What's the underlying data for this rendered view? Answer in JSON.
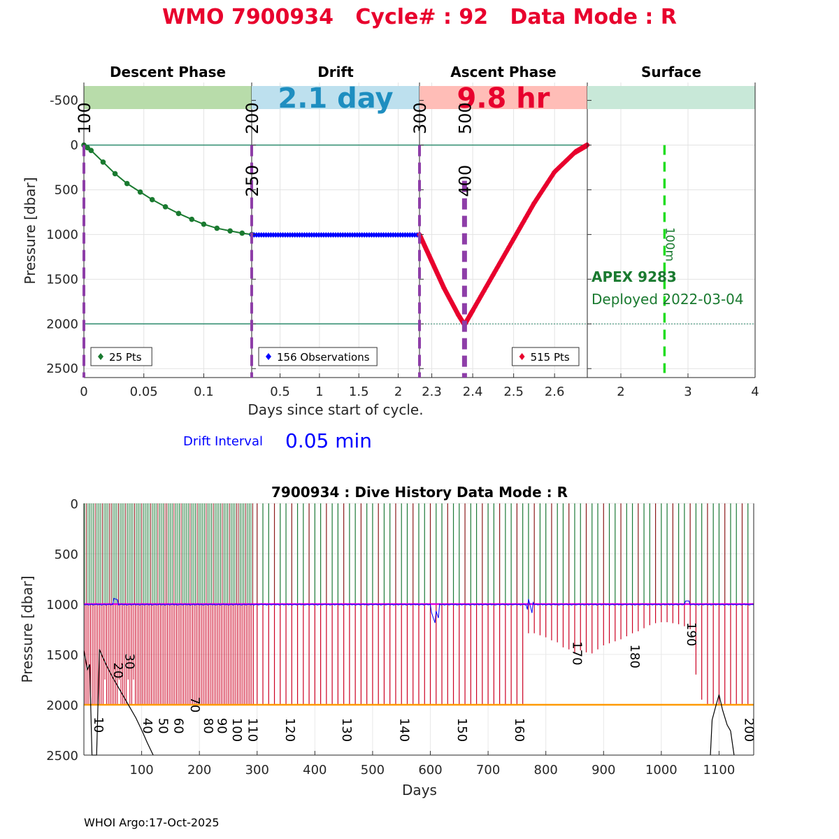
{
  "header": {
    "title": "WMO 7900934   Cycle# : 92   Data Mode : R"
  },
  "colors": {
    "title": "#e8002d",
    "descent": "#1a7a30",
    "drift": "#0000ff",
    "ascent": "#e8002d",
    "phase_marker": "#8e3ea8",
    "reference_line": "#2e8b6e",
    "surface_marker": "#22dd22",
    "float_info": "#1a7a30",
    "drift_interval": "#0000ff",
    "descent_band": "#b8dcaa",
    "drift_band": "#bde0ee",
    "ascent_band": "#ffbdb7",
    "surface_band": "#c8e8d8",
    "drift_value_band": "#1e8ec0",
    "history_green": "#1e7a38",
    "history_red": "#cc0022",
    "history_darkred": "#8b1a1a",
    "history_magenta": "#e000e0",
    "history_orange": "#ff9a00"
  },
  "chart_data": [
    {
      "type": "line",
      "title": "",
      "xlabel": "Days since start of cycle.",
      "ylabel": "Pressure [dbar]",
      "ylim": [
        2600,
        -700
      ],
      "yticks": [
        "-500",
        "0",
        "500",
        "1000",
        "1500",
        "2000",
        "2500"
      ],
      "ytick_values": [
        -500,
        0,
        500,
        1000,
        1500,
        2000,
        2500
      ],
      "panels": [
        {
          "name": "Descent Phase",
          "band_label": "",
          "xlim": [
            0,
            0.14
          ],
          "xticks": [
            "0",
            "0.05",
            "0.1"
          ],
          "xtick_values": [
            0,
            0.05,
            0.1
          ],
          "legend": "25 Pts",
          "legend_position": "bottom-left",
          "series": [
            {
              "name": "Descent",
              "points": [
                [
                  0,
                  0
                ],
                [
                  0.003,
                  30
                ],
                [
                  0.006,
                  60
                ],
                [
                  0.016,
                  190
                ],
                [
                  0.026,
                  320
                ],
                [
                  0.036,
                  430
                ],
                [
                  0.047,
                  525
                ],
                [
                  0.057,
                  610
                ],
                [
                  0.068,
                  690
                ],
                [
                  0.079,
                  765
                ],
                [
                  0.09,
                  830
                ],
                [
                  0.1,
                  885
                ],
                [
                  0.111,
                  930
                ],
                [
                  0.122,
                  960
                ],
                [
                  0.132,
                  985
                ],
                [
                  0.14,
                  1000
                ]
              ]
            }
          ]
        },
        {
          "name": "Drift",
          "band_label": "2.1 day",
          "xlim": [
            0.14,
            2.27
          ],
          "xticks": [
            "0.5",
            "1",
            "1.5",
            "2"
          ],
          "xtick_values": [
            0.5,
            1,
            1.5,
            2
          ],
          "legend": "156 Observations",
          "legend_position": "bottom-left",
          "series": [
            {
              "name": "Drift",
              "x_start": 0.14,
              "x_end": 2.27,
              "count": 156,
              "y": 1005
            }
          ]
        },
        {
          "name": "Ascent Phase",
          "band_label": "9.8 hr",
          "xlim": [
            2.27,
            2.68
          ],
          "xticks": [
            "2.3",
            "2.4",
            "2.5",
            "2.6"
          ],
          "xtick_values": [
            2.3,
            2.4,
            2.5,
            2.6
          ],
          "legend": "515 Pts",
          "legend_position": "bottom-right",
          "series": [
            {
              "name": "Ascent",
              "points": [
                [
                  2.27,
                  1000
                ],
                [
                  2.3,
                  1300
                ],
                [
                  2.33,
                  1600
                ],
                [
                  2.365,
                  1900
                ],
                [
                  2.38,
                  2010
                ],
                [
                  2.4,
                  1850
                ],
                [
                  2.45,
                  1450
                ],
                [
                  2.5,
                  1050
                ],
                [
                  2.55,
                  650
                ],
                [
                  2.6,
                  300
                ],
                [
                  2.65,
                  80
                ],
                [
                  2.68,
                  0
                ]
              ]
            }
          ]
        },
        {
          "name": "Surface",
          "band_label": "",
          "xlim": [
            1.5,
            4
          ],
          "xticks": [
            "2",
            "3",
            "4"
          ],
          "xtick_values": [
            2,
            3,
            4
          ],
          "surface_marker_x": 2.65,
          "surface_marker_label": "100m",
          "float_model": "APEX 9283",
          "deployed": "Deployed 2022-03-04"
        }
      ],
      "phase_marker_labels": [
        {
          "text": "100",
          "panel": 0,
          "x": 0,
          "y": -300
        },
        {
          "text": "200",
          "panel": 1,
          "x": 0.14,
          "y": -300
        },
        {
          "text": "250",
          "panel": 1,
          "x": 0.14,
          "y": 400
        },
        {
          "text": "300",
          "panel": 2,
          "x": 2.27,
          "y": -300
        },
        {
          "text": "500",
          "panel": 2,
          "x": 2.38,
          "y": -300
        },
        {
          "text": "400",
          "panel": 2,
          "x": 2.38,
          "y": 400
        }
      ],
      "reference_lines_y": [
        0,
        2000
      ]
    },
    {
      "type": "line",
      "title": "7900934 : Dive History      Data Mode : R",
      "xlabel": "Days",
      "ylabel": "Pressure [dbar]",
      "xlim": [
        0,
        1160
      ],
      "ylim": [
        2500,
        0
      ],
      "xticks": [
        "100",
        "200",
        "300",
        "400",
        "500",
        "600",
        "700",
        "800",
        "900",
        "1000",
        "1100"
      ],
      "xtick_values": [
        100,
        200,
        300,
        400,
        500,
        600,
        700,
        800,
        900,
        1000,
        1100
      ],
      "yticks": [
        "0",
        "500",
        "1000",
        "1500",
        "2000",
        "2500"
      ],
      "ytick_values": [
        0,
        500,
        1000,
        1500,
        2000,
        2500
      ],
      "park_pressure": 1000,
      "profile_pressure": 2000,
      "dense_period_days": [
        0,
        295
      ],
      "cycle_labels": [
        {
          "text": "10",
          "x": 18,
          "y": 2120
        },
        {
          "text": "20",
          "x": 52,
          "y": 1580
        },
        {
          "text": "30",
          "x": 72,
          "y": 1490
        },
        {
          "text": "40",
          "x": 103,
          "y": 2130
        },
        {
          "text": "50",
          "x": 130,
          "y": 2130
        },
        {
          "text": "60",
          "x": 157,
          "y": 2130
        },
        {
          "text": "70",
          "x": 185,
          "y": 1920
        },
        {
          "text": "80",
          "x": 208,
          "y": 2130
        },
        {
          "text": "90",
          "x": 232,
          "y": 2130
        },
        {
          "text": "100",
          "x": 258,
          "y": 2130
        },
        {
          "text": "110",
          "x": 285,
          "y": 2130
        },
        {
          "text": "120",
          "x": 350,
          "y": 2130
        },
        {
          "text": "130",
          "x": 448,
          "y": 2130
        },
        {
          "text": "140",
          "x": 548,
          "y": 2130
        },
        {
          "text": "150",
          "x": 648,
          "y": 2130
        },
        {
          "text": "160",
          "x": 747,
          "y": 2130
        },
        {
          "text": "170",
          "x": 847,
          "y": 1370
        },
        {
          "text": "180",
          "x": 947,
          "y": 1400
        },
        {
          "text": "190",
          "x": 1045,
          "y": 1180
        },
        {
          "text": "200",
          "x": 1145,
          "y": 2130
        }
      ],
      "deep_variable_profiles": [
        {
          "day": 775,
          "pressure": 1290
        },
        {
          "day": 785,
          "pressure": 1310
        },
        {
          "day": 795,
          "pressure": 1330
        },
        {
          "day": 805,
          "pressure": 1360
        },
        {
          "day": 815,
          "pressure": 1380
        },
        {
          "day": 825,
          "pressure": 1430
        },
        {
          "day": 835,
          "pressure": 1450
        },
        {
          "day": 845,
          "pressure": 1480
        },
        {
          "day": 855,
          "pressure": 1460
        },
        {
          "day": 865,
          "pressure": 1480
        },
        {
          "day": 875,
          "pressure": 1490
        },
        {
          "day": 885,
          "pressure": 1450
        },
        {
          "day": 895,
          "pressure": 1410
        },
        {
          "day": 905,
          "pressure": 1390
        },
        {
          "day": 915,
          "pressure": 1370
        },
        {
          "day": 925,
          "pressure": 1350
        },
        {
          "day": 935,
          "pressure": 1320
        },
        {
          "day": 945,
          "pressure": 1290
        },
        {
          "day": 955,
          "pressure": 1270
        },
        {
          "day": 965,
          "pressure": 1240
        },
        {
          "day": 975,
          "pressure": 1210
        },
        {
          "day": 985,
          "pressure": 1190
        },
        {
          "day": 995,
          "pressure": 1180
        },
        {
          "day": 1005,
          "pressure": 1180
        },
        {
          "day": 1015,
          "pressure": 1190
        },
        {
          "day": 1025,
          "pressure": 1200
        },
        {
          "day": 1035,
          "pressure": 1220
        },
        {
          "day": 1045,
          "pressure": 1250
        },
        {
          "day": 1055,
          "pressure": 1700
        },
        {
          "day": 1065,
          "pressure": 1950
        },
        {
          "day": 1075,
          "pressure": 2000
        },
        {
          "day": 1085,
          "pressure": 2000
        },
        {
          "day": 1095,
          "pressure": 2000
        },
        {
          "day": 1105,
          "pressure": 2000
        },
        {
          "day": 1115,
          "pressure": 2000
        },
        {
          "day": 1125,
          "pressure": 2000
        },
        {
          "day": 1135,
          "pressure": 2000
        },
        {
          "day": 1145,
          "pressure": 2000
        },
        {
          "day": 1155,
          "pressure": 2000
        }
      ],
      "bottom_depth_trace": [
        [
          0,
          1460
        ],
        [
          6,
          1650
        ],
        [
          10,
          1600
        ],
        [
          14,
          2500
        ],
        [
          18,
          2500
        ],
        [
          22,
          2500
        ],
        [
          27,
          1450
        ],
        [
          32,
          1520
        ],
        [
          40,
          1620
        ],
        [
          50,
          1730
        ],
        [
          60,
          1830
        ],
        [
          70,
          1930
        ],
        [
          80,
          2030
        ],
        [
          90,
          2130
        ],
        [
          100,
          2250
        ],
        [
          110,
          2380
        ],
        [
          120,
          2500
        ]
      ],
      "bottom_depth_trace_2": [
        [
          1085,
          2500
        ],
        [
          1088,
          2150
        ],
        [
          1095,
          2000
        ],
        [
          1100,
          1900
        ],
        [
          1106,
          2050
        ],
        [
          1114,
          2200
        ],
        [
          1120,
          2260
        ],
        [
          1126,
          2500
        ]
      ]
    }
  ],
  "drift_interval": {
    "label": "Drift Interval",
    "value": "0.05 min"
  },
  "footer": {
    "text": "WHOI Argo:17-Oct-2025"
  }
}
